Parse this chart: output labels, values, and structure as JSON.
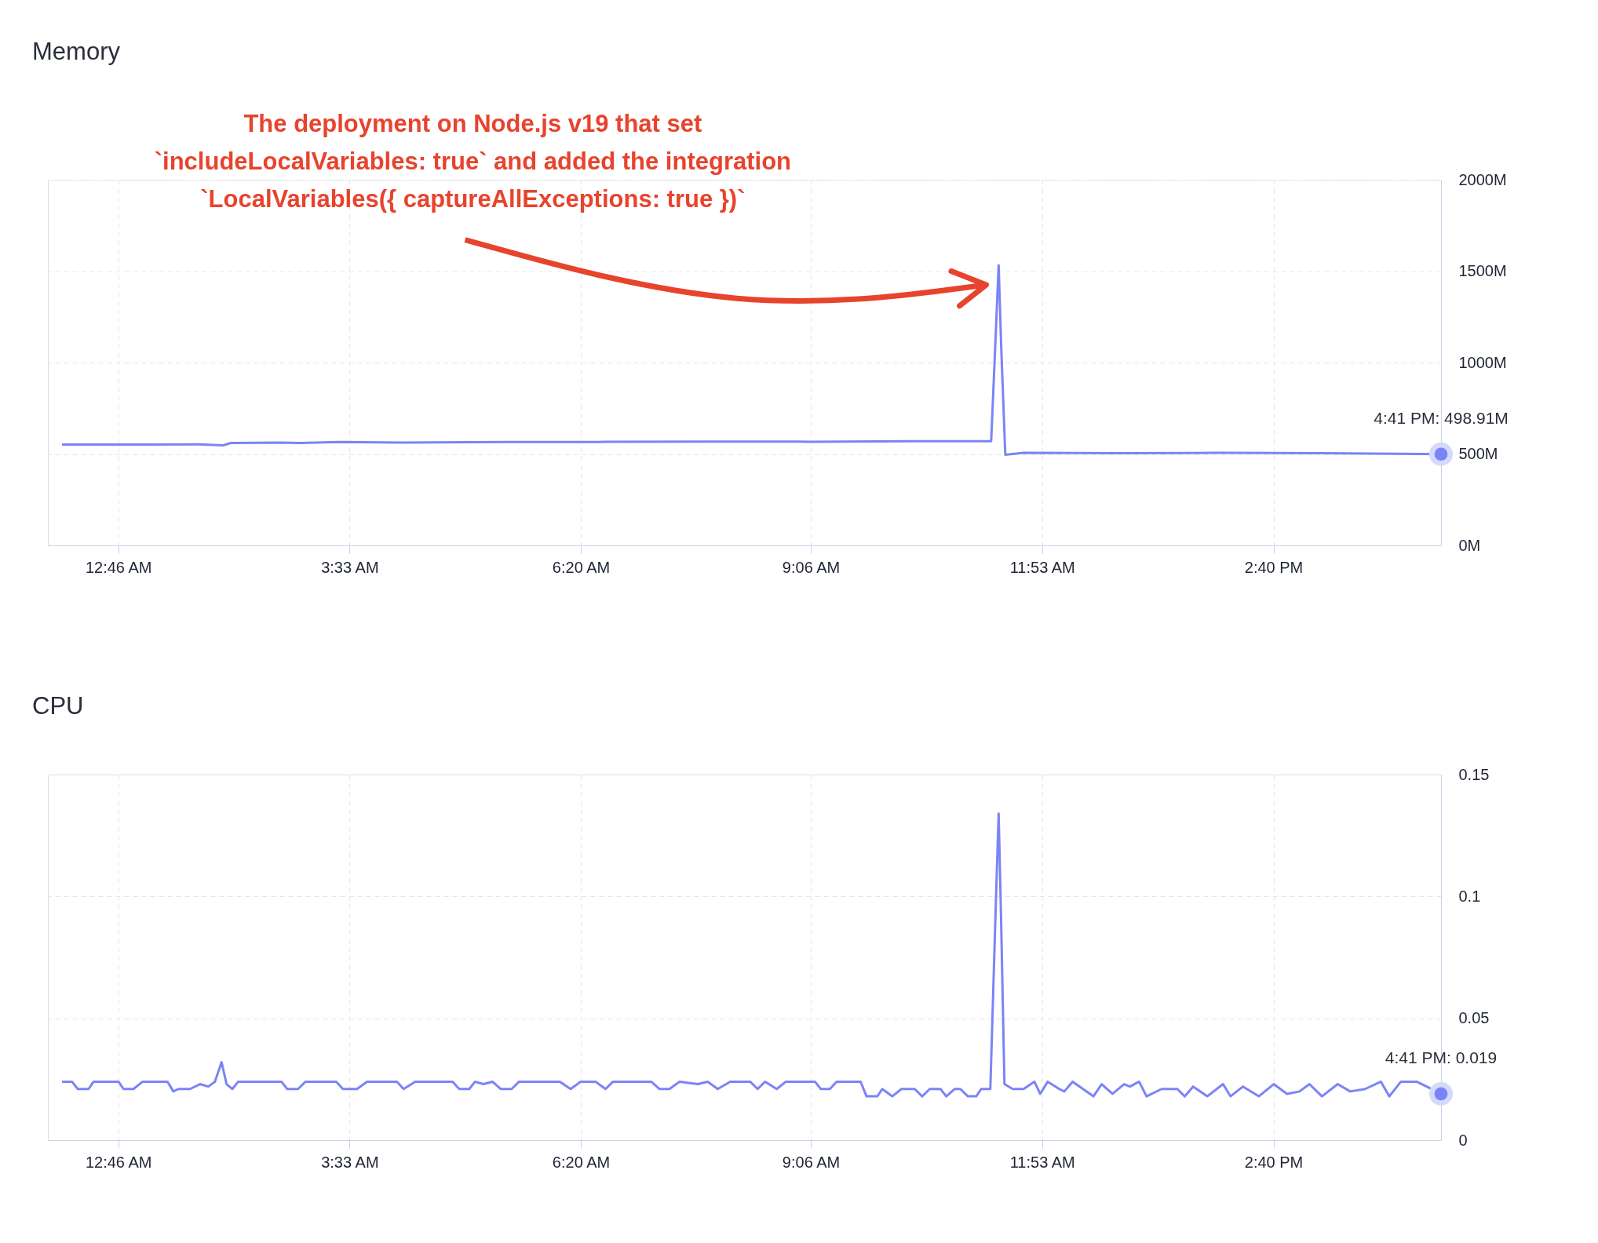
{
  "chart_data": [
    {
      "type": "line",
      "title": "Memory",
      "xlim": [
        -0.08,
        16.683
      ],
      "ylim": [
        0,
        2000
      ],
      "xticks": [
        {
          "value": 0.767,
          "label": "12:46 AM"
        },
        {
          "value": 3.55,
          "label": "3:33 AM"
        },
        {
          "value": 6.333,
          "label": "6:20 AM"
        },
        {
          "value": 9.1,
          "label": "9:06 AM"
        },
        {
          "value": 11.883,
          "label": "11:53 AM"
        },
        {
          "value": 14.667,
          "label": "2:40 PM"
        }
      ],
      "yticks": [
        {
          "value": 0,
          "label": "0M"
        },
        {
          "value": 500,
          "label": "500M"
        },
        {
          "value": 1000,
          "label": "1000M"
        },
        {
          "value": 1500,
          "label": "1500M"
        },
        {
          "value": 2000,
          "label": "2000M"
        }
      ],
      "grid": true,
      "series": [
        {
          "color": "#7b84f6",
          "x": [
            0.09,
            1.11,
            1.72,
            1.91,
            2.03,
            2.12,
            2.71,
            2.95,
            3.44,
            4.18,
            5.41,
            6.63,
            7.86,
            9.09,
            10.31,
            11.27,
            11.32,
            11.36,
            11.39,
            11.44,
            11.66,
            12.77,
            14.0,
            15.22,
            16.683
          ],
          "values": [
            551,
            551,
            553,
            549,
            547,
            560,
            562,
            560,
            565,
            562,
            565,
            566,
            568,
            567,
            570,
            570,
            1100,
            1532,
            1100,
            496,
            506,
            504,
            506,
            504,
            498.91
          ]
        }
      ],
      "annotations": [
        "The deployment on Node.js v19 that set\n`includeLocalVariables: true` and added the integration\n`LocalVariables({ captureAllExceptions: true })`",
        {
          "text": "4:41 PM: 498.91M",
          "x": 16.683,
          "y": 498.91
        }
      ]
    },
    {
      "type": "line",
      "title": "CPU",
      "xlim": [
        -0.08,
        16.683
      ],
      "ylim": [
        0,
        0.15
      ],
      "xticks": [
        {
          "value": 0.767,
          "label": "12:46 AM"
        },
        {
          "value": 3.55,
          "label": "3:33 AM"
        },
        {
          "value": 6.333,
          "label": "6:20 AM"
        },
        {
          "value": 9.1,
          "label": "9:06 AM"
        },
        {
          "value": 11.883,
          "label": "11:53 AM"
        },
        {
          "value": 14.667,
          "label": "2:40 PM"
        }
      ],
      "yticks": [
        0,
        0.05,
        0.1,
        0.15
      ],
      "grid": true,
      "series": [
        {
          "color": "#7b84f6",
          "x": [
            0.09,
            0.21,
            0.28,
            0.41,
            0.47,
            0.77,
            0.83,
            0.95,
            1.06,
            1.36,
            1.43,
            1.49,
            1.63,
            1.75,
            1.85,
            1.93,
            2.01,
            2.07,
            2.14,
            2.21,
            2.73,
            2.8,
            2.93,
            3.02,
            3.39,
            3.47,
            3.64,
            3.76,
            4.12,
            4.2,
            4.34,
            4.79,
            4.87,
            4.99,
            5.06,
            5.16,
            5.27,
            5.37,
            5.5,
            5.59,
            6.08,
            6.21,
            6.33,
            6.51,
            6.63,
            6.72,
            7.18,
            7.28,
            7.4,
            7.52,
            7.74,
            7.86,
            7.98,
            8.13,
            8.37,
            8.46,
            8.55,
            8.69,
            8.8,
            9.15,
            9.22,
            9.33,
            9.41,
            9.7,
            9.77,
            9.9,
            9.96,
            10.08,
            10.19,
            10.35,
            10.44,
            10.53,
            10.66,
            10.73,
            10.83,
            10.9,
            10.99,
            11.09,
            11.15,
            11.26,
            11.32,
            11.36,
            11.39,
            11.43,
            11.53,
            11.66,
            11.79,
            11.86,
            11.95,
            12.09,
            12.15,
            12.25,
            12.5,
            12.6,
            12.73,
            12.87,
            12.94,
            13.05,
            13.14,
            13.32,
            13.51,
            13.6,
            13.7,
            13.87,
            14.06,
            14.15,
            14.3,
            14.49,
            14.67,
            14.83,
            14.98,
            15.1,
            15.25,
            15.44,
            15.59,
            15.77,
            15.96,
            16.06,
            16.2,
            16.39,
            16.51,
            16.683
          ],
          "values": [
            0.024,
            0.024,
            0.021,
            0.021,
            0.024,
            0.024,
            0.021,
            0.021,
            0.024,
            0.024,
            0.02,
            0.021,
            0.021,
            0.023,
            0.022,
            0.024,
            0.032,
            0.023,
            0.021,
            0.024,
            0.024,
            0.021,
            0.021,
            0.024,
            0.024,
            0.021,
            0.021,
            0.024,
            0.024,
            0.021,
            0.024,
            0.024,
            0.021,
            0.021,
            0.024,
            0.023,
            0.024,
            0.021,
            0.021,
            0.024,
            0.024,
            0.021,
            0.024,
            0.024,
            0.021,
            0.024,
            0.024,
            0.021,
            0.021,
            0.024,
            0.023,
            0.024,
            0.021,
            0.024,
            0.024,
            0.021,
            0.024,
            0.021,
            0.024,
            0.024,
            0.021,
            0.021,
            0.024,
            0.024,
            0.018,
            0.018,
            0.021,
            0.018,
            0.021,
            0.021,
            0.018,
            0.021,
            0.021,
            0.018,
            0.021,
            0.021,
            0.018,
            0.018,
            0.021,
            0.021,
            0.09,
            0.134,
            0.09,
            0.023,
            0.021,
            0.021,
            0.024,
            0.019,
            0.024,
            0.021,
            0.02,
            0.024,
            0.018,
            0.023,
            0.019,
            0.023,
            0.022,
            0.024,
            0.018,
            0.021,
            0.021,
            0.018,
            0.022,
            0.018,
            0.023,
            0.018,
            0.022,
            0.018,
            0.023,
            0.019,
            0.02,
            0.023,
            0.018,
            0.023,
            0.02,
            0.021,
            0.024,
            0.018,
            0.024,
            0.024,
            0.022,
            0.019
          ]
        }
      ],
      "annotations": [
        {
          "text": "4:41 PM: 0.019",
          "x": 16.683,
          "y": 0.019
        }
      ]
    }
  ]
}
